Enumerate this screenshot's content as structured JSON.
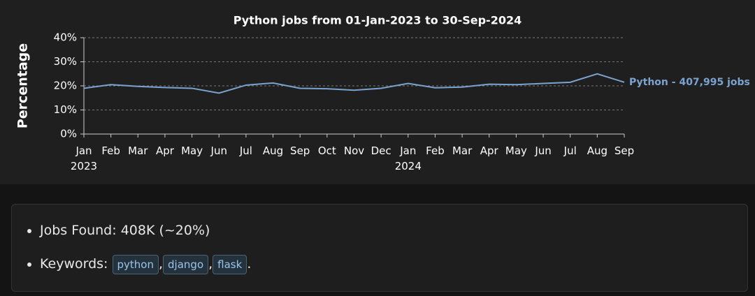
{
  "chart_data": {
    "type": "line",
    "title": "Python jobs from 01-Jan-2023 to 30-Sep-2024",
    "y_label": "Percentage",
    "categories": [
      "Jan 2023",
      "Feb",
      "Mar",
      "Apr",
      "May",
      "Jun",
      "Jul",
      "Aug",
      "Sep",
      "Oct",
      "Nov",
      "Dec",
      "Jan 2024",
      "Feb",
      "Mar",
      "Apr",
      "May",
      "Jun",
      "Jul",
      "Aug",
      "Sep"
    ],
    "series": [
      {
        "name": "Python - 407,995 jobs",
        "color": "#7ba3cf",
        "values": [
          19,
          20.5,
          19.8,
          19.3,
          19,
          17,
          20.3,
          21.2,
          19,
          18.8,
          18.2,
          19,
          21,
          19.2,
          19.5,
          20.7,
          20.5,
          21,
          21.5,
          25,
          21.5
        ]
      }
    ],
    "ylim": [
      0,
      40
    ],
    "yticks": [
      {
        "value": 0,
        "label": "0%"
      },
      {
        "value": 10,
        "label": "10%"
      },
      {
        "value": 20,
        "label": "20%"
      },
      {
        "value": 30,
        "label": "30%"
      },
      {
        "value": 40,
        "label": "40%"
      }
    ],
    "grid": true
  },
  "summary": {
    "jobs_found": "Jobs Found: 408K (~20%)",
    "keywords_label": "Keywords:",
    "keywords": [
      "python",
      "django",
      "flask"
    ],
    "separator": ",",
    "end": "."
  }
}
